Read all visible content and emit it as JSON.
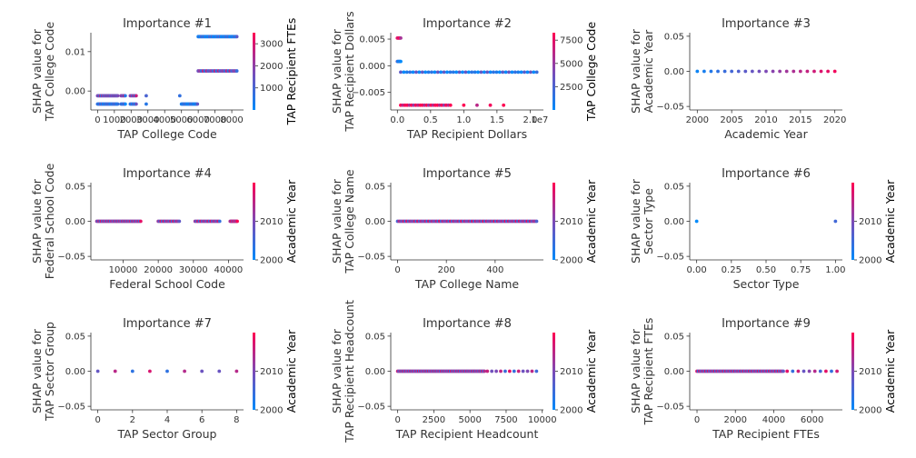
{
  "colors": {
    "low": "#008afb",
    "mid": "#7d4ab6",
    "high": "#ff0052",
    "axis": "#333333"
  },
  "chart_data": [
    {
      "type": "scatter",
      "title": "Importance #1",
      "xlabel": "TAP College Code",
      "ylabel": [
        "SHAP value for",
        "TAP College Code"
      ],
      "xlim": [
        -400,
        8700
      ],
      "ylim": [
        -0.0048,
        0.0148
      ],
      "xticks": [
        0,
        1000,
        2000,
        3000,
        4000,
        5000,
        6000,
        7000,
        8000
      ],
      "xtick_labels": [
        "0",
        "1000",
        "2000",
        "3000",
        "4000",
        "5000",
        "6000",
        "7000",
        "8000"
      ],
      "yticks": [
        0.0,
        0.01
      ],
      "ytick_labels": [
        "0.00",
        "0.01"
      ],
      "offset_text": "",
      "colorbar": {
        "label": "TAP Recipient FTEs",
        "ticks": [
          1000,
          2000,
          3000
        ],
        "tick_labels": [
          "1000",
          "2000",
          "3000"
        ],
        "range": [
          0,
          3500
        ]
      },
      "series": [
        {
          "x_start": 0,
          "x_end": 1200,
          "y": -0.0012,
          "n": 22,
          "c": 0.45
        },
        {
          "x_start": 0,
          "x_end": 1200,
          "y": -0.0033,
          "n": 22,
          "c": 0.15
        },
        {
          "x_start": 1400,
          "x_end": 1650,
          "y": -0.0012,
          "n": 5,
          "c": 0.5
        },
        {
          "x_start": 1400,
          "x_end": 1650,
          "y": -0.0033,
          "n": 5,
          "c": 0.15
        },
        {
          "x_start": 1950,
          "x_end": 2300,
          "y": -0.0012,
          "n": 6,
          "c": 0.5
        },
        {
          "x_start": 1950,
          "x_end": 2300,
          "y": -0.0033,
          "n": 6,
          "c": 0.15
        },
        {
          "x_start": 2900,
          "x_end": 2920,
          "y": -0.0012,
          "n": 1,
          "c": 0.3
        },
        {
          "x_start": 2900,
          "x_end": 2920,
          "y": -0.0033,
          "n": 1,
          "c": 0.15
        },
        {
          "x_start": 4900,
          "x_end": 4920,
          "y": -0.0012,
          "n": 1,
          "c": 0.2
        },
        {
          "x_start": 5000,
          "x_end": 5950,
          "y": -0.0033,
          "n": 18,
          "c": 0.05
        },
        {
          "x_start": 6000,
          "x_end": 8300,
          "y": 0.0138,
          "n": 34,
          "c": 0.05
        },
        {
          "x_start": 6000,
          "x_end": 8300,
          "y": 0.0051,
          "n": 24,
          "c": 0.45
        }
      ]
    },
    {
      "type": "scatter",
      "title": "Importance #2",
      "xlabel": "TAP Recipient Dollars",
      "ylabel": [
        "SHAP value for",
        "TAP Recipient Dollars"
      ],
      "xlim": [
        -0.1,
        2.2
      ],
      "ylim": [
        -0.0083,
        0.0062
      ],
      "xticks": [
        0.0,
        0.5,
        1.0,
        1.5,
        2.0
      ],
      "xtick_labels": [
        "0.0",
        "0.5",
        "1.0",
        "1.5",
        "2.0"
      ],
      "yticks": [
        -0.005,
        0.0,
        0.005
      ],
      "ytick_labels": [
        "−0.005",
        "0.000",
        "0.005"
      ],
      "offset_text": "1e7",
      "colorbar": {
        "label": "TAP College Code",
        "ticks": [
          2500,
          5000,
          7500
        ],
        "tick_labels": [
          "2500",
          "5000",
          "7500"
        ],
        "range": [
          0,
          8300
        ]
      },
      "series": [
        {
          "x_start": 0.0,
          "x_end": 0.05,
          "y": 0.0052,
          "n": 5,
          "c": 0.9
        },
        {
          "x_start": 0.0,
          "x_end": 0.05,
          "y": 0.0008,
          "n": 5,
          "c": 0.05
        },
        {
          "x_start": 0.05,
          "x_end": 2.1,
          "y": -0.0012,
          "n": 45,
          "c": 0.08
        },
        {
          "x_start": 0.05,
          "x_end": 0.8,
          "y": -0.0074,
          "n": 24,
          "c": 0.92
        },
        {
          "x_start": 1.0,
          "x_end": 1.6,
          "y": -0.0074,
          "n": 4,
          "c": 0.92
        }
      ]
    },
    {
      "type": "scatter",
      "title": "Importance #3",
      "xlabel": "Academic Year",
      "ylabel": [
        "SHAP value for",
        "Academic Year"
      ],
      "xlim": [
        1998.9,
        2021.1
      ],
      "ylim": [
        -0.055,
        0.055
      ],
      "xticks": [
        2000,
        2005,
        2010,
        2015,
        2020
      ],
      "xtick_labels": [
        "2000",
        "2005",
        "2010",
        "2015",
        "2020"
      ],
      "yticks": [
        -0.05,
        0.0,
        0.05
      ],
      "ytick_labels": [
        "−0.05",
        "0.00",
        "0.05"
      ],
      "offset_text": "",
      "colorbar": null,
      "series": [
        {
          "x_start": 2000,
          "x_end": 2020,
          "y": 0.0,
          "n": 21,
          "c": "x"
        }
      ]
    },
    {
      "type": "scatter",
      "title": "Importance #4",
      "xlabel": "Federal School Code",
      "ylabel": [
        "SHAP value for",
        "Federal School Code"
      ],
      "xlim": [
        800,
        44300
      ],
      "ylim": [
        -0.055,
        0.055
      ],
      "xticks": [
        10000,
        20000,
        30000,
        40000
      ],
      "xtick_labels": [
        "10000",
        "20000",
        "30000",
        "40000"
      ],
      "yticks": [
        -0.05,
        0.0,
        0.05
      ],
      "ytick_labels": [
        "−0.05",
        "0.00",
        "0.05"
      ],
      "offset_text": "",
      "colorbar": {
        "label": "Academic Year",
        "ticks": [
          2000,
          2010
        ],
        "tick_labels": [
          "2000",
          "2010"
        ],
        "range": [
          2000,
          2020
        ]
      },
      "series": [
        {
          "x_start": 2500,
          "x_end": 15000,
          "y": 0.0,
          "n": 40,
          "c": 0.55
        },
        {
          "x_start": 20000,
          "x_end": 26000,
          "y": 0.0,
          "n": 16,
          "c": 0.55
        },
        {
          "x_start": 30500,
          "x_end": 37500,
          "y": 0.0,
          "n": 18,
          "c": 0.55
        },
        {
          "x_start": 40500,
          "x_end": 42500,
          "y": 0.0,
          "n": 10,
          "c": 0.7
        }
      ]
    },
    {
      "type": "scatter",
      "title": "Importance #5",
      "xlabel": "TAP College Name",
      "ylabel": [
        "SHAP value for",
        "TAP College Name"
      ],
      "xlim": [
        -28,
        598
      ],
      "ylim": [
        -0.055,
        0.055
      ],
      "xticks": [
        0,
        200,
        400
      ],
      "xtick_labels": [
        "0",
        "200",
        "400"
      ],
      "yticks": [
        -0.05,
        0.0,
        0.05
      ],
      "ytick_labels": [
        "−0.05",
        "0.00",
        "0.05"
      ],
      "offset_text": "",
      "colorbar": {
        "label": "Academic Year",
        "ticks": [
          2000,
          2010
        ],
        "tick_labels": [
          "2000",
          "2010"
        ],
        "range": [
          2000,
          2020
        ]
      },
      "series": [
        {
          "x_start": 0,
          "x_end": 570,
          "y": 0.0,
          "n": 90,
          "c": 0.55
        }
      ]
    },
    {
      "type": "scatter",
      "title": "Importance #6",
      "xlabel": "Sector Type",
      "ylabel": [
        "SHAP value for",
        "Sector Type"
      ],
      "xlim": [
        -0.05,
        1.05
      ],
      "ylim": [
        -0.055,
        0.055
      ],
      "xticks": [
        0.0,
        0.25,
        0.5,
        0.75,
        1.0
      ],
      "xtick_labels": [
        "0.00",
        "0.25",
        "0.50",
        "0.75",
        "1.00"
      ],
      "yticks": [
        -0.05,
        0.0,
        0.05
      ],
      "ytick_labels": [
        "−0.05",
        "0.00",
        "0.05"
      ],
      "offset_text": "",
      "colorbar": {
        "label": "Academic Year",
        "ticks": [
          2000,
          2010
        ],
        "tick_labels": [
          "2000",
          "2010"
        ],
        "range": [
          2000,
          2020
        ]
      },
      "series": [
        {
          "x_start": 0.0,
          "x_end": 0.0,
          "y": 0.0,
          "n": 1,
          "c": 0.2
        },
        {
          "x_start": 1.0,
          "x_end": 1.0,
          "y": 0.0,
          "n": 1,
          "c": 0.6
        }
      ]
    },
    {
      "type": "scatter",
      "title": "Importance #7",
      "xlabel": "TAP Sector Group",
      "ylabel": [
        "SHAP value for",
        "TAP Sector Group"
      ],
      "xlim": [
        -0.4,
        8.4
      ],
      "ylim": [
        -0.055,
        0.055
      ],
      "xticks": [
        0,
        2,
        4,
        6,
        8
      ],
      "xtick_labels": [
        "0",
        "2",
        "4",
        "6",
        "8"
      ],
      "yticks": [
        -0.05,
        0.0,
        0.05
      ],
      "ytick_labels": [
        "−0.05",
        "0.00",
        "0.05"
      ],
      "offset_text": "",
      "colorbar": {
        "label": "Academic Year",
        "ticks": [
          2000,
          2010
        ],
        "tick_labels": [
          "2000",
          "2010"
        ],
        "range": [
          2000,
          2020
        ]
      },
      "series": [
        {
          "x_start": 0,
          "x_end": 8,
          "y": 0.0,
          "n": 9,
          "c": 0.5
        }
      ]
    },
    {
      "type": "scatter",
      "title": "Importance #8",
      "xlabel": "TAP Recipient Headcount",
      "ylabel": [
        "SHAP value for",
        "TAP Recipient Headcount"
      ],
      "xlim": [
        -480,
        10080
      ],
      "ylim": [
        -0.055,
        0.055
      ],
      "xticks": [
        0,
        2500,
        5000,
        7500,
        10000
      ],
      "xtick_labels": [
        "0",
        "2500",
        "5000",
        "7500",
        "10000"
      ],
      "yticks": [
        -0.05,
        0.0,
        0.05
      ],
      "ytick_labels": [
        "−0.05",
        "0.00",
        "0.05"
      ],
      "offset_text": "",
      "colorbar": {
        "label": "Academic Year",
        "ticks": [
          2000,
          2010
        ],
        "tick_labels": [
          "2000",
          "2010"
        ],
        "range": [
          2000,
          2020
        ]
      },
      "series": [
        {
          "x_start": 0,
          "x_end": 6000,
          "y": 0.0,
          "n": 80,
          "c": 0.55
        },
        {
          "x_start": 6200,
          "x_end": 9600,
          "y": 0.0,
          "n": 12,
          "c": 0.55
        }
      ]
    },
    {
      "type": "scatter",
      "title": "Importance #9",
      "xlabel": "TAP Recipient FTEs",
      "ylabel": [
        "SHAP value for",
        "TAP Recipient FTEs"
      ],
      "xlim": [
        -380,
        7580
      ],
      "ylim": [
        -0.055,
        0.055
      ],
      "xticks": [
        0,
        2000,
        4000,
        6000
      ],
      "xtick_labels": [
        "0",
        "2000",
        "4000",
        "6000"
      ],
      "yticks": [
        -0.05,
        0.0,
        0.05
      ],
      "ytick_labels": [
        "−0.05",
        "0.00",
        "0.05"
      ],
      "offset_text": "",
      "colorbar": {
        "label": "Academic Year",
        "ticks": [
          2000,
          2010
        ],
        "tick_labels": [
          "2000",
          "2010"
        ],
        "range": [
          2000,
          2020
        ]
      },
      "series": [
        {
          "x_start": 0,
          "x_end": 4500,
          "y": 0.0,
          "n": 70,
          "c": 0.55
        },
        {
          "x_start": 4700,
          "x_end": 7300,
          "y": 0.0,
          "n": 10,
          "c": 0.55
        }
      ]
    }
  ]
}
